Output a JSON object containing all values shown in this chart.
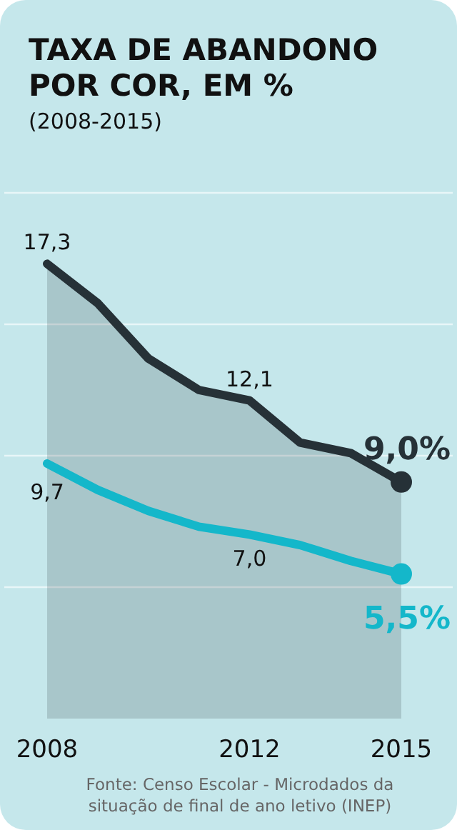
{
  "chart_data": {
    "type": "line",
    "title": "TAXA DE ABANDONO POR COR, EM %",
    "subtitle": "(2008-2015)",
    "x": [
      2008,
      2009,
      2010,
      2011,
      2012,
      2013,
      2014,
      2015
    ],
    "xlim": [
      2008,
      2015
    ],
    "xticks": [
      2008,
      2012,
      2015
    ],
    "ylim": [
      0,
      20
    ],
    "yticks": [
      {
        "value": 5,
        "label": null
      },
      {
        "value": 10,
        "label": null
      },
      {
        "value": 15,
        "label": null
      },
      {
        "value": 20,
        "label": null
      }
    ],
    "tick_labels": "x",
    "grid": "y",
    "series": [
      {
        "type": "area",
        "color": "#263137",
        "values": [
          17.3,
          15.8,
          13.7,
          12.5,
          12.1,
          10.5,
          10.1,
          9.0
        ],
        "value_labels": [
          "17,3",
          null,
          null,
          null,
          "12,1",
          null,
          null,
          "9,0%"
        ]
      },
      {
        "type": "line",
        "color": "#14b7ca",
        "values": [
          9.7,
          8.7,
          7.9,
          7.3,
          7.0,
          6.6,
          6.0,
          5.5
        ],
        "value_labels": [
          "9,7",
          null,
          null,
          null,
          "7,0",
          null,
          null,
          "5,5%"
        ]
      }
    ],
    "annotations": [
      "Fonte: Censo Escolar - Microdados da situação de final de ano letivo (INEP)"
    ]
  }
}
